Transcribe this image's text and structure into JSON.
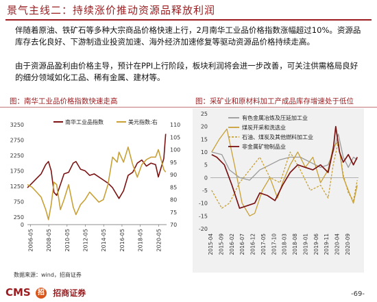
{
  "title": "景气主线二：持续涨价推动资源品释放利润",
  "paragraph1": "伴随着原油、铁矿石等多种大宗商品价格快速上行，2月南华工业品价格指数涨幅超过10%。资源品库存去化良好、下游制造业投资加速、海外经济加速修复等驱动资源品价格持续走高。",
  "paragraph2": "由于资源品盈利由价格主导，预计在PPI上行阶段，板块利润将会进一步改善，可关注供需格局良好的细分领域如化工品、稀有金属、建材等。",
  "left_chart_title": "图：南华工业品价格指数快速走高",
  "right_chart_title": "图：采矿业和原材料加工产成品库存增速处于低位",
  "source": "数据来源：wind，招商证券",
  "footer": {
    "cms": "CMS",
    "logo_char": "招",
    "brand": "招商证券"
  },
  "page_number": "-69-",
  "colors": {
    "accent": "#9b1b1f",
    "series_dark": "#7a1212",
    "series_gold": "#c8a035",
    "series_gray": "#9a9a9a"
  },
  "chart_data": [
    {
      "type": "line",
      "title": "图：南华工业品价格指数快速走高",
      "x_tick_labels": [
        "2006-05",
        "2008-05",
        "2010-05",
        "2012-05",
        "2014-05",
        "2016-05",
        "2018-05",
        "2020-05"
      ],
      "x_range": [
        2006.0,
        2021.2
      ],
      "y_left": {
        "range": [
          0,
          3250
        ],
        "ticks": [
          "0",
          "250",
          "750",
          "1250",
          "1750",
          "2250",
          "2750",
          "3250"
        ]
      },
      "y_right": {
        "range": [
          70,
          110
        ],
        "ticks": [
          "70",
          "75",
          "80",
          "85",
          "90",
          "95",
          "100",
          "105",
          "110"
        ]
      },
      "legend": [
        "南华工业品指数",
        "美元指数:右"
      ],
      "legend_position": "top",
      "series": [
        {
          "name": "南华工业品指数",
          "axis": "left",
          "x": [
            2006.0,
            2006.5,
            2007.0,
            2007.5,
            2008.0,
            2008.3,
            2008.6,
            2008.9,
            2009.2,
            2009.6,
            2010.0,
            2010.5,
            2011.0,
            2011.3,
            2011.8,
            2012.3,
            2012.8,
            2013.3,
            2013.8,
            2014.3,
            2014.8,
            2015.3,
            2015.8,
            2016.0,
            2016.5,
            2017.0,
            2017.5,
            2018.0,
            2018.5,
            2019.0,
            2019.5,
            2020.0,
            2020.3,
            2020.6,
            2020.9,
            2021.1
          ],
          "y": [
            1200,
            1350,
            1500,
            1650,
            1950,
            2050,
            1750,
            1050,
            950,
            1300,
            1650,
            1700,
            2000,
            2050,
            1800,
            1750,
            1600,
            1650,
            1550,
            1450,
            1350,
            1200,
            950,
            850,
            1100,
            1600,
            1700,
            2000,
            2100,
            1900,
            2000,
            1950,
            1550,
            1850,
            2150,
            2950
          ]
        },
        {
          "name": "美元指数:右",
          "axis": "right",
          "x": [
            2006.0,
            2006.5,
            2007.0,
            2007.5,
            2008.0,
            2008.3,
            2008.6,
            2008.9,
            2009.2,
            2009.6,
            2010.0,
            2010.5,
            2011.0,
            2011.3,
            2011.8,
            2012.3,
            2012.8,
            2013.3,
            2013.8,
            2014.3,
            2014.8,
            2015.3,
            2015.8,
            2016.0,
            2016.5,
            2017.0,
            2017.5,
            2018.0,
            2018.5,
            2019.0,
            2019.5,
            2020.0,
            2020.3,
            2020.6,
            2020.9,
            2021.1
          ],
          "y": [
            86,
            85,
            83,
            81,
            76,
            72,
            78,
            87,
            86,
            76,
            80,
            86,
            77,
            74,
            78,
            80,
            83,
            81,
            79,
            80,
            86,
            97,
            95,
            99,
            95,
            101,
            94,
            89,
            94,
            96,
            97,
            97,
            100,
            96,
            92,
            91
          ]
        }
      ]
    },
    {
      "type": "line",
      "title": "图：采矿业和原材料加工产成品库存增速处于低位",
      "x_tick_labels": [
        "2015-04",
        "2015-09",
        "2016-02",
        "2016-07",
        "2016-12",
        "2017-05",
        "2017-10",
        "2018-03",
        "2018-08",
        "2019-01",
        "2019-06",
        "2019-11",
        "2020-04",
        "2020-09"
      ],
      "x_range": [
        2015.25,
        2021.1
      ],
      "y_range": [
        -20,
        25
      ],
      "y_ticks": [
        "-20",
        "-15",
        "-10",
        "-5",
        "0",
        "5",
        "10",
        "15",
        "20",
        "25"
      ],
      "legend": [
        "有色金属冶炼及压延加工业",
        "煤炭开采和洗选业",
        "石油、煤炭及其他燃料加工业",
        "非金属矿物制品业"
      ],
      "legend_position": "top-left",
      "series": [
        {
          "name": "有色金属冶炼及压延加工业",
          "x": [
            2015.3,
            2015.7,
            2016.0,
            2016.4,
            2016.8,
            2017.2,
            2017.6,
            2018.0,
            2018.4,
            2018.8,
            2019.2,
            2019.6,
            2019.9,
            2020.1,
            2020.3,
            2020.5,
            2020.7,
            2020.9,
            2021.05
          ],
          "y": [
            10,
            9,
            3,
            0,
            -1,
            3,
            5,
            7,
            8,
            8,
            6,
            4,
            5,
            10,
            17,
            8,
            4,
            8,
            7
          ]
        },
        {
          "name": "煤炭开采和洗选业",
          "x": [
            2015.3,
            2015.6,
            2015.9,
            2016.2,
            2016.5,
            2016.8,
            2017.0,
            2017.3,
            2017.6,
            2017.9,
            2018.1,
            2018.4,
            2018.7,
            2019.0,
            2019.3,
            2019.6,
            2019.9,
            2020.1,
            2020.3,
            2020.5,
            2020.7,
            2020.9,
            2021.05
          ],
          "y": [
            10,
            15,
            19,
            5,
            -10,
            -15,
            -14,
            -5,
            0,
            -8,
            -2,
            5,
            10,
            4,
            8,
            -2,
            3,
            12,
            14,
            0,
            -5,
            -10,
            -3
          ]
        },
        {
          "name": "石油、煤炭及其他燃料加工业",
          "x": [
            2015.3,
            2015.7,
            2016.0,
            2016.4,
            2016.8,
            2017.2,
            2017.6,
            2018.0,
            2018.4,
            2018.8,
            2019.2,
            2019.6,
            2019.9,
            2020.1,
            2020.3,
            2020.5,
            2020.7,
            2020.9,
            2021.05
          ],
          "y": [
            -5,
            -12,
            -10,
            -2,
            3,
            8,
            0,
            -2,
            10,
            3,
            -5,
            -3,
            -8,
            5,
            14,
            1,
            -6,
            -9,
            -1
          ]
        },
        {
          "name": "非金属矿物制品业",
          "x": [
            2015.3,
            2015.5,
            2015.8,
            2016.1,
            2016.4,
            2016.7,
            2017.0,
            2017.2,
            2017.5,
            2017.8,
            2018.1,
            2018.4,
            2018.7,
            2019.0,
            2019.3,
            2019.6,
            2019.9,
            2020.1,
            2020.2,
            2020.35,
            2020.5,
            2020.7,
            2020.9,
            2021.05
          ],
          "y": [
            9,
            8,
            5,
            -3,
            -12,
            -11,
            -10,
            -6,
            -7,
            -9,
            -3,
            2,
            5,
            4,
            3,
            5,
            2,
            11,
            20,
            10,
            6,
            9,
            5,
            8
          ]
        }
      ]
    }
  ]
}
